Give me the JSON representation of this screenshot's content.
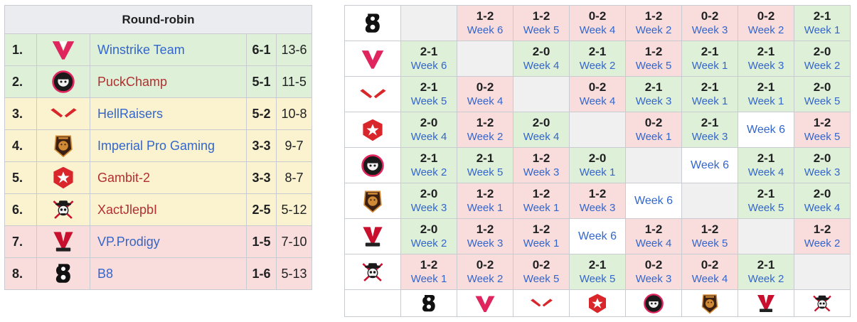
{
  "standings": {
    "title": "Round-robin",
    "rows": [
      {
        "rank": "1.",
        "team": "Winstrike Team",
        "score": "6-1",
        "maps": "13-6",
        "bg": "green",
        "link": "blue",
        "logo": "winstrike-logo-icon"
      },
      {
        "rank": "2.",
        "team": "PuckChamp",
        "score": "5-1",
        "maps": "11-5",
        "bg": "green",
        "link": "red",
        "logo": "puckchamp-logo-icon"
      },
      {
        "rank": "3.",
        "team": "HellRaisers",
        "score": "5-2",
        "maps": "10-8",
        "bg": "yellow",
        "link": "blue",
        "logo": "hellraisers-logo-icon"
      },
      {
        "rank": "4.",
        "team": "Imperial Pro Gaming",
        "score": "3-3",
        "maps": "9-7",
        "bg": "yellow",
        "link": "blue",
        "logo": "imperial-logo-icon"
      },
      {
        "rank": "5.",
        "team": "Gambit-2",
        "score": "3-3",
        "maps": "8-7",
        "bg": "yellow",
        "link": "red",
        "logo": "gambit-logo-icon"
      },
      {
        "rank": "6.",
        "team": "XactJlepbI",
        "score": "2-5",
        "maps": "5-12",
        "bg": "yellow",
        "link": "red",
        "logo": "xactjlepbi-logo-icon"
      },
      {
        "rank": "7.",
        "team": "VP.Prodigy",
        "score": "1-5",
        "maps": "7-10",
        "bg": "red",
        "link": "blue",
        "logo": "vpprodigy-logo-icon"
      },
      {
        "rank": "8.",
        "team": "B8",
        "score": "1-6",
        "maps": "5-13",
        "bg": "red",
        "link": "blue",
        "logo": "b8-logo-icon"
      }
    ]
  },
  "crosstable": {
    "row_logos": [
      "b8",
      "winstrike",
      "hellraisers",
      "gambit",
      "puckchamp",
      "imperial",
      "vpprodigy",
      "xactjlepbi"
    ],
    "col_logos": [
      "b8",
      "winstrike",
      "hellraisers",
      "gambit",
      "puckchamp",
      "imperial",
      "vpprodigy",
      "xactjlepbi"
    ],
    "rows": [
      [
        {
          "bg": "gray"
        },
        {
          "bg": "red",
          "score": "1-2",
          "week": "Week 6"
        },
        {
          "bg": "red",
          "score": "1-2",
          "week": "Week 5"
        },
        {
          "bg": "red",
          "score": "0-2",
          "week": "Week 4"
        },
        {
          "bg": "red",
          "score": "1-2",
          "week": "Week 2"
        },
        {
          "bg": "red",
          "score": "0-2",
          "week": "Week 3"
        },
        {
          "bg": "red",
          "score": "0-2",
          "week": "Week 2"
        },
        {
          "bg": "green",
          "score": "2-1",
          "week": "Week 1"
        }
      ],
      [
        {
          "bg": "green",
          "score": "2-1",
          "week": "Week 6"
        },
        {
          "bg": "gray"
        },
        {
          "bg": "green",
          "score": "2-0",
          "week": "Week 4"
        },
        {
          "bg": "green",
          "score": "2-1",
          "week": "Week 2"
        },
        {
          "bg": "red",
          "score": "1-2",
          "week": "Week 5"
        },
        {
          "bg": "green",
          "score": "2-1",
          "week": "Week 1"
        },
        {
          "bg": "green",
          "score": "2-1",
          "week": "Week 3"
        },
        {
          "bg": "green",
          "score": "2-0",
          "week": "Week 2"
        }
      ],
      [
        {
          "bg": "green",
          "score": "2-1",
          "week": "Week 5"
        },
        {
          "bg": "red",
          "score": "0-2",
          "week": "Week 4"
        },
        {
          "bg": "gray"
        },
        {
          "bg": "red",
          "score": "0-2",
          "week": "Week 4"
        },
        {
          "bg": "green",
          "score": "2-1",
          "week": "Week 3"
        },
        {
          "bg": "green",
          "score": "2-1",
          "week": "Week 1"
        },
        {
          "bg": "green",
          "score": "2-1",
          "week": "Week 1"
        },
        {
          "bg": "green",
          "score": "2-0",
          "week": "Week 5"
        }
      ],
      [
        {
          "bg": "green",
          "score": "2-0",
          "week": "Week 4"
        },
        {
          "bg": "red",
          "score": "1-2",
          "week": "Week 2"
        },
        {
          "bg": "green",
          "score": "2-0",
          "week": "Week 4"
        },
        {
          "bg": "gray"
        },
        {
          "bg": "red",
          "score": "0-2",
          "week": "Week 1"
        },
        {
          "bg": "green",
          "score": "2-1",
          "week": "Week 3"
        },
        {
          "bg": "white",
          "week": "Week 6"
        },
        {
          "bg": "red",
          "score": "1-2",
          "week": "Week 5"
        }
      ],
      [
        {
          "bg": "green",
          "score": "2-1",
          "week": "Week 2"
        },
        {
          "bg": "green",
          "score": "2-1",
          "week": "Week 5"
        },
        {
          "bg": "red",
          "score": "1-2",
          "week": "Week 3"
        },
        {
          "bg": "green",
          "score": "2-0",
          "week": "Week 1"
        },
        {
          "bg": "gray"
        },
        {
          "bg": "white",
          "week": "Week 6"
        },
        {
          "bg": "green",
          "score": "2-1",
          "week": "Week 4"
        },
        {
          "bg": "green",
          "score": "2-0",
          "week": "Week 3"
        }
      ],
      [
        {
          "bg": "green",
          "score": "2-0",
          "week": "Week 3"
        },
        {
          "bg": "red",
          "score": "1-2",
          "week": "Week 1"
        },
        {
          "bg": "red",
          "score": "1-2",
          "week": "Week 1"
        },
        {
          "bg": "red",
          "score": "1-2",
          "week": "Week 3"
        },
        {
          "bg": "white",
          "week": "Week 6"
        },
        {
          "bg": "gray"
        },
        {
          "bg": "green",
          "score": "2-1",
          "week": "Week 5"
        },
        {
          "bg": "green",
          "score": "2-0",
          "week": "Week 4"
        }
      ],
      [
        {
          "bg": "green",
          "score": "2-0",
          "week": "Week 2"
        },
        {
          "bg": "red",
          "score": "1-2",
          "week": "Week 3"
        },
        {
          "bg": "red",
          "score": "1-2",
          "week": "Week 1"
        },
        {
          "bg": "white",
          "week": "Week 6"
        },
        {
          "bg": "red",
          "score": "1-2",
          "week": "Week 4"
        },
        {
          "bg": "red",
          "score": "1-2",
          "week": "Week 5"
        },
        {
          "bg": "gray"
        },
        {
          "bg": "red",
          "score": "1-2",
          "week": "Week 2"
        }
      ],
      [
        {
          "bg": "red",
          "score": "1-2",
          "week": "Week 1"
        },
        {
          "bg": "red",
          "score": "0-2",
          "week": "Week 2"
        },
        {
          "bg": "red",
          "score": "0-2",
          "week": "Week 5"
        },
        {
          "bg": "green",
          "score": "2-1",
          "week": "Week 5"
        },
        {
          "bg": "red",
          "score": "0-2",
          "week": "Week 3"
        },
        {
          "bg": "red",
          "score": "0-2",
          "week": "Week 4"
        },
        {
          "bg": "green",
          "score": "2-1",
          "week": "Week 2"
        },
        {
          "bg": "gray"
        }
      ]
    ]
  },
  "colors": {
    "green": "#dff0d8",
    "yellow": "#fbf3d0",
    "red": "#f9dcdc",
    "link_blue": "#3366cc",
    "link_red": "#b03030",
    "winstrike_pink": "#e0245e",
    "hellraisers_red": "#d9262b"
  }
}
